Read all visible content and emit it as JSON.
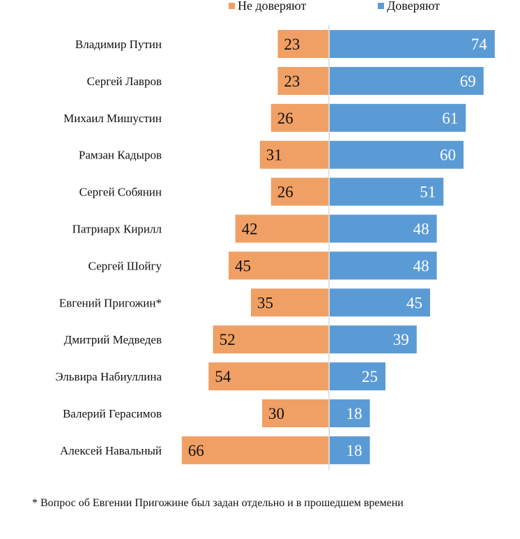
{
  "chart_data": {
    "type": "bar",
    "orientation": "horizontal-diverging",
    "title": "",
    "xlabel": "",
    "ylabel": "",
    "categories": [
      "Владимир Путин",
      "Сергей Лавров",
      "Михаил Мишустин",
      "Рамзан Кадыров",
      "Сергей Собянин",
      "Патриарх Кирилл",
      "Сергей Шойгу",
      "Евгений Пригожин*",
      "Дмитрий Медведев",
      "Эльвира Набиуллина",
      "Валерий Герасимов",
      "Алексей Навальный"
    ],
    "series": [
      {
        "name": "Не доверяют",
        "color": "#f0a064",
        "direction": "left",
        "values": [
          23,
          23,
          26,
          31,
          26,
          42,
          45,
          35,
          52,
          54,
          30,
          66
        ]
      },
      {
        "name": "Доверяют",
        "color": "#5b9bd5",
        "direction": "right",
        "values": [
          74,
          69,
          61,
          60,
          51,
          48,
          48,
          45,
          39,
          25,
          18,
          18
        ]
      }
    ],
    "xlim": [
      -66,
      74
    ],
    "grid": false,
    "legend_position": "top",
    "data_labels": true
  },
  "legend": {
    "distrust_label": "Не доверяют",
    "trust_label": "Доверяют"
  },
  "footnote": "* Вопрос об Евгении Пригожине был задан отдельно и в прошедшем времени"
}
